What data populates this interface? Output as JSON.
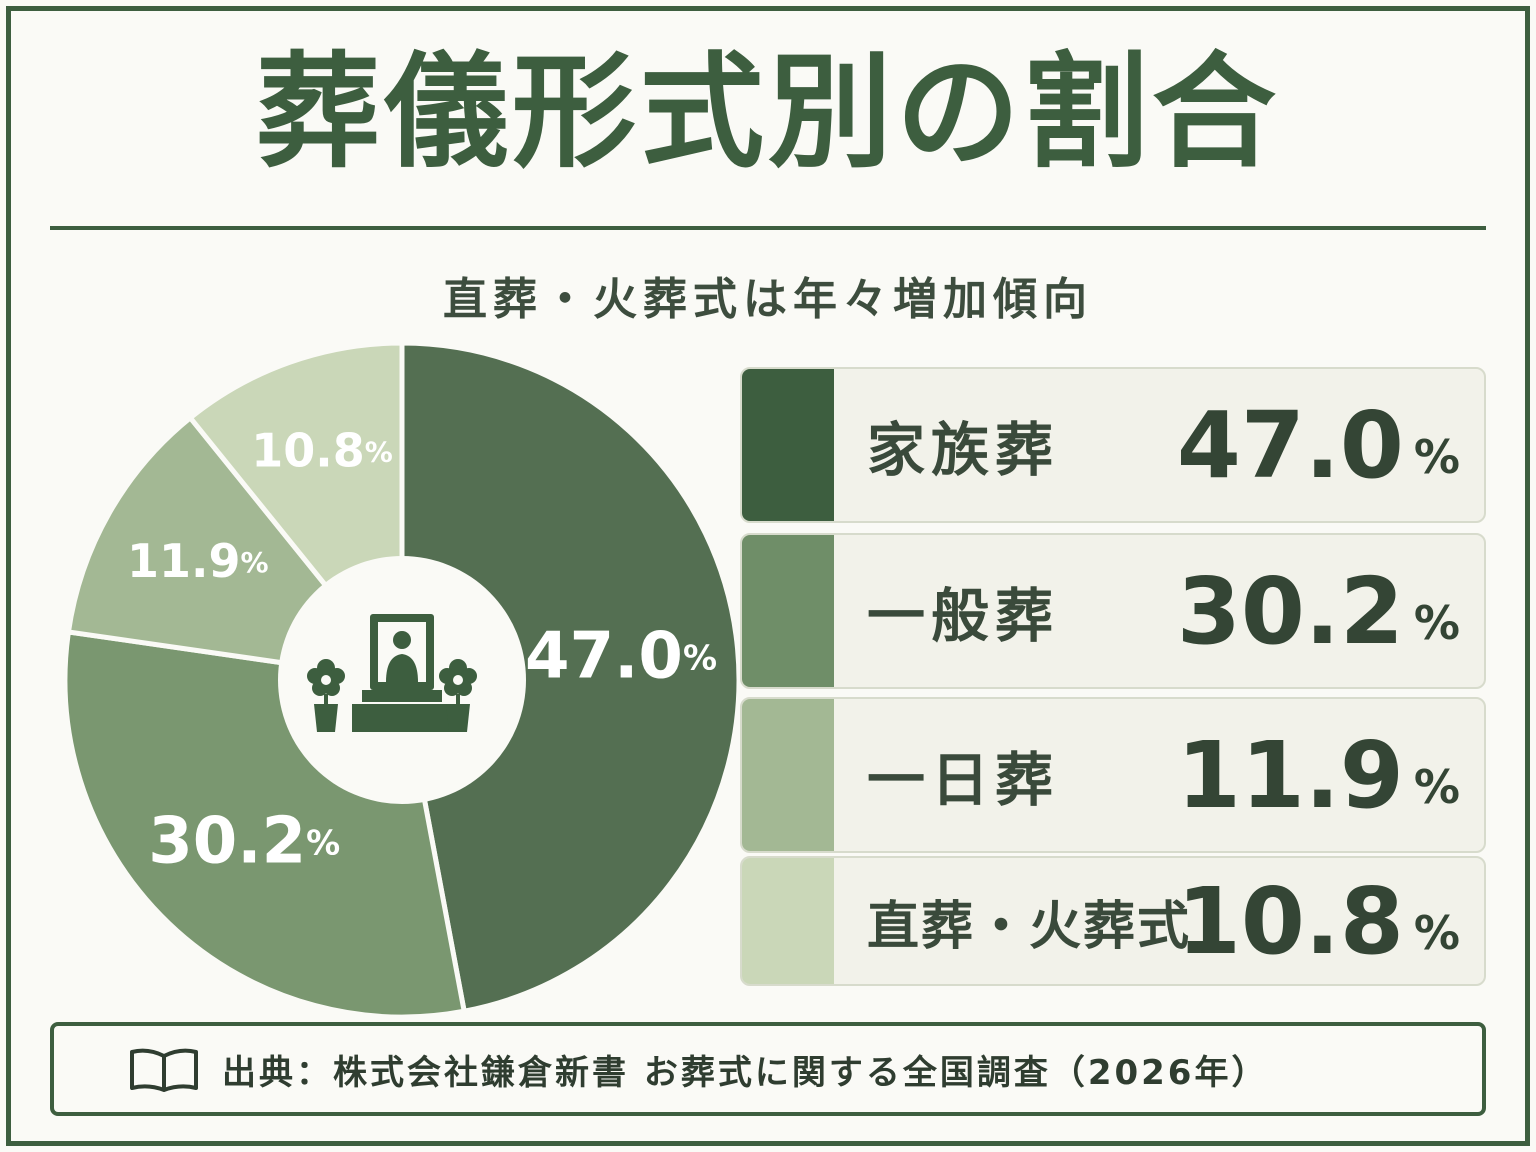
{
  "title": "葬儀形式別の割合",
  "subtitle": "直葬・火葬式は年々増加傾向",
  "source": "出典：株式会社鎌倉新書 お葬式に関する全国調査（2026年）",
  "percent_sign": "%",
  "icons": {
    "center": "funeral-altar-icon",
    "source": "book-icon"
  },
  "colors": {
    "dark": "#3d5e3f",
    "series": [
      "#546f52",
      "#7a9770",
      "#a3b894",
      "#cad7b8"
    ],
    "background": "#fafaf6"
  },
  "chart_data": {
    "type": "pie",
    "title": "葬儀形式別の割合",
    "subtitle": "直葬・火葬式は年々増加傾向",
    "unit": "%",
    "slices": [
      {
        "label": "家族葬",
        "value": 47.0,
        "display": "47.0"
      },
      {
        "label": "一般葬",
        "value": 30.2,
        "display": "30.2"
      },
      {
        "label": "一日葬",
        "value": 11.9,
        "display": "11.9"
      },
      {
        "label": "直葬・火葬式",
        "value": 10.8,
        "display": "10.8"
      }
    ],
    "start": "12 o'clock",
    "direction": "clockwise",
    "legend": "right"
  }
}
